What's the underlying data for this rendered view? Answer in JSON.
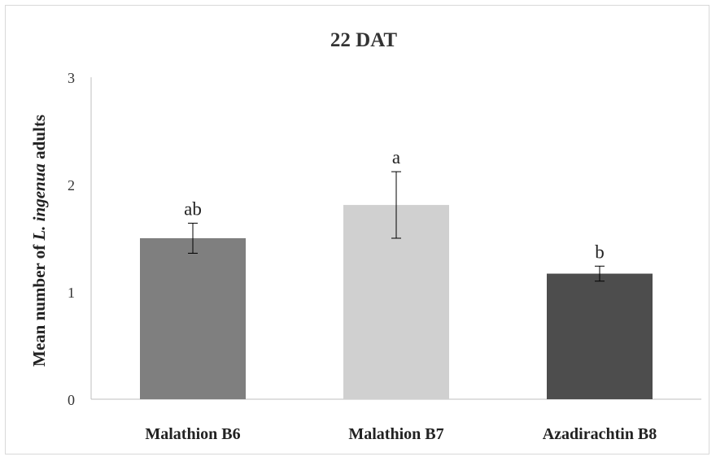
{
  "chart_data": {
    "type": "bar",
    "title": "22 DAT",
    "ylabel_parts": {
      "prefix": "Mean number of ",
      "italic": "L. ingenua",
      "suffix": " adults"
    },
    "xlabel": "",
    "categories": [
      "Malathion B6",
      "Malathion B7",
      "Azadirachtin B8"
    ],
    "values": [
      1.5,
      1.81,
      1.17
    ],
    "error_bars": [
      0.14,
      0.31,
      0.07
    ],
    "significance_letters": [
      "ab",
      "a",
      "b"
    ],
    "bar_colors": [
      "#7f7f7f",
      "#d0d0d0",
      "#4d4d4d"
    ],
    "ylim": [
      0,
      3
    ],
    "yticks": [
      "0",
      "1",
      "2",
      "3"
    ],
    "grid": false,
    "legend": "none"
  }
}
